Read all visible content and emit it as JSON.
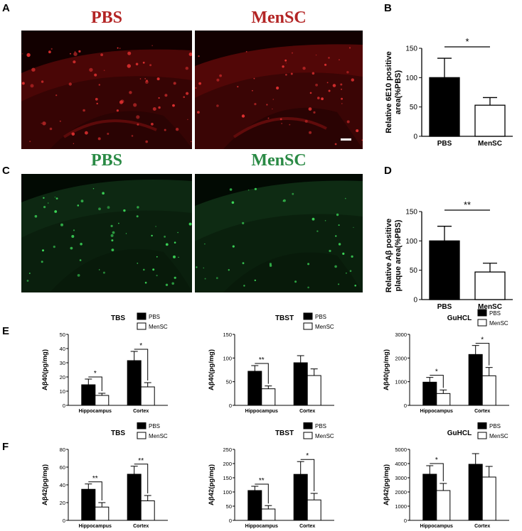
{
  "panel_labels": {
    "A": "A",
    "B": "B",
    "C": "C",
    "D": "D",
    "E": "E",
    "F": "F"
  },
  "micrographs": {
    "a_left_title": "PBS",
    "a_right_title": "MenSC",
    "c_left_title": "PBS",
    "c_right_title": "MenSC",
    "red_title_color": "#b32424",
    "green_title_color": "#2a8a45"
  },
  "chart_data": [
    {
      "id": "B",
      "type": "bar",
      "categories": [
        "PBS",
        "MenSC"
      ],
      "values": [
        100,
        53
      ],
      "errors": [
        33,
        13
      ],
      "fills": [
        "#000000",
        "#ffffff"
      ],
      "ylabel": "Relative 6E10 positive area(%PBS)",
      "ylabel_lines": [
        "Relative 6E10 positive",
        "area(%PBS)"
      ],
      "ylim": [
        0,
        150
      ],
      "yticks": [
        0,
        50,
        100,
        150
      ],
      "significance": [
        {
          "from": 0,
          "to": 1,
          "label": "*"
        }
      ]
    },
    {
      "id": "D",
      "type": "bar",
      "categories": [
        "PBS",
        "MenSC"
      ],
      "values": [
        100,
        47
      ],
      "errors": [
        25,
        15
      ],
      "fills": [
        "#000000",
        "#ffffff"
      ],
      "ylabel": "Relative Aβ positive plaque area(%PBS)",
      "ylabel_lines": [
        "Relative Aβ positive",
        "plaque area(%PBS)"
      ],
      "ylim": [
        0,
        150
      ],
      "yticks": [
        0,
        50,
        100,
        150
      ],
      "significance": [
        {
          "from": 0,
          "to": 1,
          "label": "**"
        }
      ]
    },
    {
      "id": "E1",
      "type": "bar",
      "title": "TBS",
      "categories": [
        "Hippocampus",
        "Cortex"
      ],
      "series": [
        {
          "name": "PBS",
          "values": [
            14.5,
            31.5
          ],
          "errors": [
            4,
            6.5
          ]
        },
        {
          "name": "MenSC",
          "values": [
            7,
            13
          ],
          "errors": [
            1.5,
            3
          ]
        }
      ],
      "ylabel": "Aβ40(pg/mg)",
      "ylim": [
        0,
        50
      ],
      "yticks": [
        0,
        10,
        20,
        30,
        40,
        50
      ],
      "significance": [
        {
          "group": 0,
          "label": "*"
        },
        {
          "group": 1,
          "label": "*"
        }
      ],
      "legend": [
        "PBS",
        "MenSC"
      ]
    },
    {
      "id": "E2",
      "type": "bar",
      "title": "TBST",
      "categories": [
        "Hippocampus",
        "Cortex"
      ],
      "series": [
        {
          "name": "PBS",
          "values": [
            72,
            90
          ],
          "errors": [
            12,
            15
          ]
        },
        {
          "name": "MenSC",
          "values": [
            35,
            63
          ],
          "errors": [
            6,
            14
          ]
        }
      ],
      "ylabel": "Aβ40(pg/mg)",
      "ylim": [
        0,
        150
      ],
      "yticks": [
        0,
        50,
        100,
        150
      ],
      "significance": [
        {
          "group": 0,
          "label": "**"
        }
      ],
      "legend": [
        "PBS",
        "MenSC"
      ]
    },
    {
      "id": "E3",
      "type": "bar",
      "title": "GuHCL",
      "categories": [
        "Hippocampus",
        "Cortex"
      ],
      "series": [
        {
          "name": "PBS",
          "values": [
            980,
            2150
          ],
          "errors": [
            200,
            380
          ]
        },
        {
          "name": "MenSC",
          "values": [
            500,
            1250
          ],
          "errors": [
            150,
            350
          ]
        }
      ],
      "ylabel": "Aβ40(pg/mg)",
      "ylim": [
        0,
        3000
      ],
      "yticks": [
        0,
        1000,
        2000,
        3000
      ],
      "significance": [
        {
          "group": 0,
          "label": "*"
        },
        {
          "group": 1,
          "label": "*"
        }
      ],
      "legend": [
        "PBS",
        "MenSC"
      ]
    },
    {
      "id": "F1",
      "type": "bar",
      "title": "TBS",
      "categories": [
        "Hippocampus",
        "Cortex"
      ],
      "series": [
        {
          "name": "PBS",
          "values": [
            35,
            52
          ],
          "errors": [
            6,
            9
          ]
        },
        {
          "name": "MenSC",
          "values": [
            15,
            22
          ],
          "errors": [
            5,
            6
          ]
        }
      ],
      "ylabel": "Aβ42(pg/mg)",
      "ylim": [
        0,
        80
      ],
      "yticks": [
        0,
        20,
        40,
        60,
        80
      ],
      "significance": [
        {
          "group": 0,
          "label": "**"
        },
        {
          "group": 1,
          "label": "**"
        }
      ],
      "legend": [
        "PBS",
        "MenSC"
      ]
    },
    {
      "id": "F2",
      "type": "bar",
      "title": "TBST",
      "categories": [
        "Hippocampus",
        "Cortex"
      ],
      "series": [
        {
          "name": "PBS",
          "values": [
            105,
            162
          ],
          "errors": [
            15,
            45
          ]
        },
        {
          "name": "MenSC",
          "values": [
            40,
            72
          ],
          "errors": [
            12,
            23
          ]
        }
      ],
      "ylabel": "Aβ42(pg/mg)",
      "ylim": [
        0,
        250
      ],
      "yticks": [
        0,
        50,
        100,
        150,
        200,
        250
      ],
      "significance": [
        {
          "group": 0,
          "label": "**"
        },
        {
          "group": 1,
          "label": "*"
        }
      ],
      "legend": [
        "PBS",
        "MenSC"
      ]
    },
    {
      "id": "F3",
      "type": "bar",
      "title": "GuHCL",
      "categories": [
        "Hippocampus",
        "Cortex"
      ],
      "series": [
        {
          "name": "PBS",
          "values": [
            3250,
            3950
          ],
          "errors": [
            600,
            750
          ]
        },
        {
          "name": "MenSC",
          "values": [
            2100,
            3050
          ],
          "errors": [
            500,
            750
          ]
        }
      ],
      "ylabel": "Aβ42(pg/mg)",
      "ylim": [
        0,
        5000
      ],
      "yticks": [
        0,
        1000,
        2000,
        3000,
        4000,
        5000
      ],
      "significance": [
        {
          "group": 0,
          "label": "*"
        }
      ],
      "legend": [
        "PBS",
        "MenSC"
      ]
    }
  ]
}
